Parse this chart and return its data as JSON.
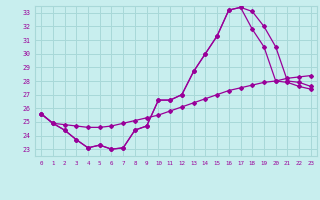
{
  "background_color": "#c8eeee",
  "grid_color": "#a8d8d8",
  "line_color": "#990099",
  "x_ticks": [
    0,
    1,
    2,
    3,
    4,
    5,
    6,
    7,
    8,
    9,
    10,
    11,
    12,
    13,
    14,
    15,
    16,
    17,
    18,
    19,
    20,
    21,
    22,
    23
  ],
  "y_ticks": [
    23,
    24,
    25,
    26,
    27,
    28,
    29,
    30,
    31,
    32,
    33
  ],
  "ylim": [
    22.5,
    33.5
  ],
  "xlim": [
    -0.5,
    23.5
  ],
  "line1_x": [
    0,
    1,
    2,
    3,
    4,
    5,
    6,
    7,
    8,
    9,
    10,
    11,
    12,
    13,
    14,
    15,
    16,
    17,
    18,
    19,
    20,
    21,
    22,
    23
  ],
  "line1_y": [
    25.6,
    24.9,
    24.4,
    23.7,
    23.1,
    23.3,
    23.0,
    23.1,
    24.4,
    24.7,
    26.6,
    26.6,
    27.0,
    28.7,
    30.0,
    31.3,
    33.2,
    33.4,
    33.1,
    32.0,
    30.5,
    28.0,
    27.9,
    27.6
  ],
  "line2_x": [
    0,
    1,
    2,
    3,
    4,
    5,
    6,
    7,
    8,
    9,
    10,
    11,
    12,
    13,
    14,
    15,
    16,
    17,
    18,
    19,
    20,
    21,
    22,
    23
  ],
  "line2_y": [
    25.6,
    24.9,
    24.4,
    23.7,
    23.1,
    23.3,
    23.0,
    23.1,
    24.4,
    24.7,
    26.6,
    26.6,
    27.0,
    28.7,
    30.0,
    31.3,
    33.2,
    33.4,
    31.8,
    30.5,
    28.0,
    27.9,
    27.6,
    27.4
  ],
  "line3_x": [
    0,
    1,
    2,
    3,
    4,
    5,
    6,
    7,
    8,
    9,
    10,
    11,
    12,
    13,
    14,
    15,
    16,
    17,
    18,
    19,
    20,
    21,
    22,
    23
  ],
  "line3_y": [
    25.6,
    24.9,
    24.8,
    24.7,
    24.6,
    24.6,
    24.7,
    24.9,
    25.1,
    25.3,
    25.5,
    25.8,
    26.1,
    26.4,
    26.7,
    27.0,
    27.3,
    27.5,
    27.7,
    27.9,
    28.0,
    28.2,
    28.3,
    28.4
  ]
}
